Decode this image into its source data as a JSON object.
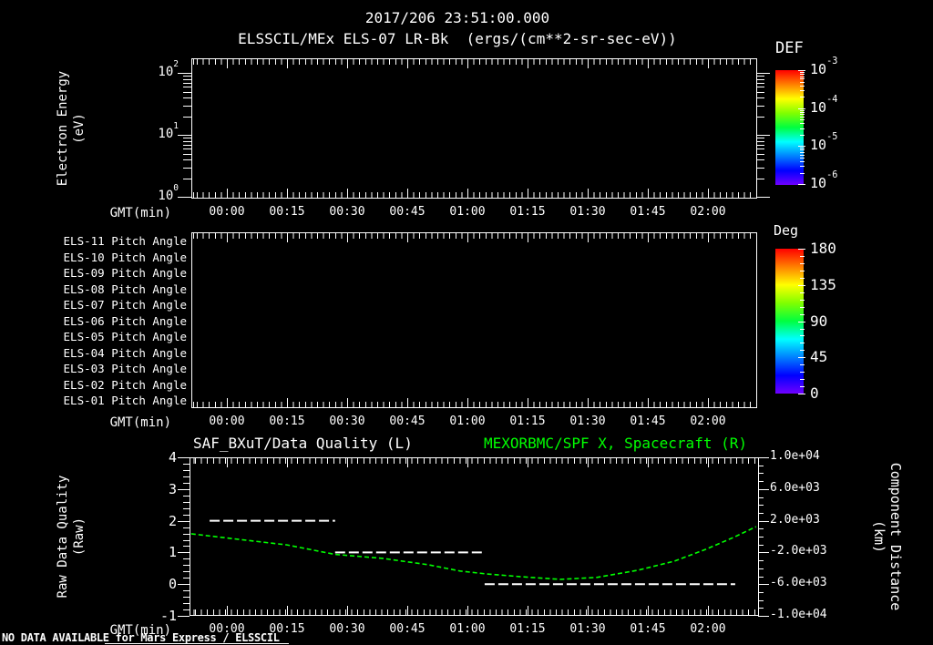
{
  "header": {
    "datetime": "2017/206 23:51:00.000",
    "instrument_title": "ELSSCIL/MEx ELS-07 LR-Bk  (ergs/(cm**2-sr-sec-eV))"
  },
  "time_axis": {
    "label": "GMT(min)",
    "tick_labels": [
      "00:00",
      "00:15",
      "00:30",
      "00:45",
      "01:00",
      "01:15",
      "01:30",
      "01:45",
      "02:00"
    ]
  },
  "energy_panel": {
    "ylabel_line1": "Electron Energy",
    "ylabel_line2": "(eV)",
    "ytick_labels": [
      {
        "base": "10",
        "sup": "2"
      },
      {
        "base": "10",
        "sup": "1"
      },
      {
        "base": "10",
        "sup": "0"
      }
    ]
  },
  "def_colorbar": {
    "title": "DEF",
    "tick_labels": [
      {
        "base": "10",
        "sup": "-3"
      },
      {
        "base": "10",
        "sup": "-4"
      },
      {
        "base": "10",
        "sup": "-5"
      },
      {
        "base": "10",
        "sup": "-6"
      }
    ]
  },
  "pitch_panel": {
    "row_labels": [
      "ELS-11 Pitch Angle",
      "ELS-10 Pitch Angle",
      "ELS-09 Pitch Angle",
      "ELS-08 Pitch Angle",
      "ELS-07 Pitch Angle",
      "ELS-06 Pitch Angle",
      "ELS-05 Pitch Angle",
      "ELS-04 Pitch Angle",
      "ELS-03 Pitch Angle",
      "ELS-02 Pitch Angle",
      "ELS-01 Pitch Angle"
    ]
  },
  "deg_colorbar": {
    "title": "Deg",
    "tick_labels": [
      "180",
      "135",
      "90",
      "45",
      "0"
    ]
  },
  "quality_panel": {
    "title_left": "SAF_BXuT/Data Quality (L)",
    "title_right": "MEXORBMC/SPF X, Spacecraft (R)",
    "ylabel_left_line1": "Raw Data Quality",
    "ylabel_left_line2": "(Raw)",
    "ylabel_right_line1": "Component Distance",
    "ylabel_right_line2": "(km)",
    "ytick_labels_left": [
      "4",
      "3",
      "2",
      "1",
      "0",
      "-1"
    ],
    "ytick_labels_right": [
      "1.0e+04",
      "6.0e+03",
      "2.0e+03",
      "-2.0e+03",
      "-6.0e+03",
      "-1.0e+04"
    ]
  },
  "footer": {
    "message": "NO DATA AVAILABLE for Mars Express / ELSSCIL"
  },
  "colors": {
    "background": "#000000",
    "foreground": "#ffffff",
    "accent_green": "#00ff00",
    "rainbow": [
      "#ff0000",
      "#ff8000",
      "#ffff00",
      "#80ff00",
      "#00ff40",
      "#00ffff",
      "#0080ff",
      "#0000ff",
      "#7000ff"
    ]
  },
  "chart_data": [
    {
      "type": "heatmap",
      "panel": "electron_energy_spectrogram",
      "title": "ELSSCIL/MEx ELS-07 LR-Bk (ergs/(cm**2-sr-sec-eV))",
      "start_time": "2017/206 23:51:00.000",
      "xlabel": "GMT(min)",
      "x_tick_labels": [
        "00:00",
        "00:15",
        "00:30",
        "00:45",
        "01:00",
        "01:15",
        "01:30",
        "01:45",
        "02:00"
      ],
      "ylabel": "Electron Energy (eV)",
      "y_scale": "log",
      "y_tick_values": [
        100,
        10,
        1
      ],
      "colorbar": {
        "title": "DEF",
        "units": "ergs/(cm**2-sr-sec-eV)",
        "scale": "log",
        "tick_values": [
          0.001,
          0.0001,
          1e-05,
          1e-06
        ]
      },
      "values": [],
      "note": "no data plotted"
    },
    {
      "type": "heatmap",
      "panel": "pitch_angle",
      "rows": [
        "ELS-11 Pitch Angle",
        "ELS-10 Pitch Angle",
        "ELS-09 Pitch Angle",
        "ELS-08 Pitch Angle",
        "ELS-07 Pitch Angle",
        "ELS-06 Pitch Angle",
        "ELS-05 Pitch Angle",
        "ELS-04 Pitch Angle",
        "ELS-03 Pitch Angle",
        "ELS-02 Pitch Angle",
        "ELS-01 Pitch Angle"
      ],
      "xlabel": "GMT(min)",
      "x_tick_labels": [
        "00:00",
        "00:15",
        "00:30",
        "00:45",
        "01:00",
        "01:15",
        "01:30",
        "01:45",
        "02:00"
      ],
      "colorbar": {
        "title": "Deg",
        "scale": "linear",
        "min": 0,
        "max": 180,
        "tick_values": [
          180,
          135,
          90,
          45,
          0
        ]
      },
      "values": [],
      "note": "no data plotted"
    },
    {
      "type": "line",
      "panel": "data_quality_and_spacecraft_distance",
      "title_left": "SAF_BXuT/Data Quality (L)",
      "title_right": "MEXORBMC/SPF X, Spacecraft (R)",
      "xlabel": "GMT(min)",
      "x_tick_labels": [
        "00:00",
        "00:15",
        "00:30",
        "00:45",
        "01:00",
        "01:15",
        "01:30",
        "01:45",
        "02:00"
      ],
      "x_minutes_range": [
        -8.9,
        132
      ],
      "ylabel_left": "Raw Data Quality (Raw)",
      "ylabel_right": "Component Distance (km)",
      "ylim_left": [
        -1,
        4
      ],
      "ylim_right": [
        -10000,
        10000
      ],
      "ytick_values_left": [
        4,
        3,
        2,
        1,
        0,
        -1
      ],
      "ytick_values_right": [
        10000,
        6000,
        2000,
        -2000,
        -6000,
        -10000
      ],
      "series": [
        {
          "name": "SAF_BXuT/Data Quality (L)",
          "axis": "left",
          "color": "#ffffff",
          "line_style": "dashed",
          "steps": [
            {
              "t_start_min": -4.3,
              "t_end_min": 27.0,
              "value": 2
            },
            {
              "t_start_min": 27.0,
              "t_end_min": 64.3,
              "value": 1
            },
            {
              "t_start_min": 64.3,
              "t_end_min": 126.8,
              "value": 0
            }
          ]
        },
        {
          "name": "MEXORBMC/SPF X, Spacecraft (R)",
          "axis": "right",
          "color": "#00ff00",
          "line_style": "dashed",
          "t_min": [
            -8.9,
            3.0,
            15.0,
            27.0,
            38.9,
            50.2,
            58.2,
            64.5,
            73.0,
            83.2,
            92.3,
            102.5,
            111.6,
            119.5,
            126.4,
            132.0
          ],
          "km": [
            350,
            -350,
            -1050,
            -2250,
            -2750,
            -3550,
            -4350,
            -4700,
            -5050,
            -5400,
            -5150,
            -4250,
            -3100,
            -1600,
            -100,
            1250
          ]
        }
      ]
    }
  ]
}
